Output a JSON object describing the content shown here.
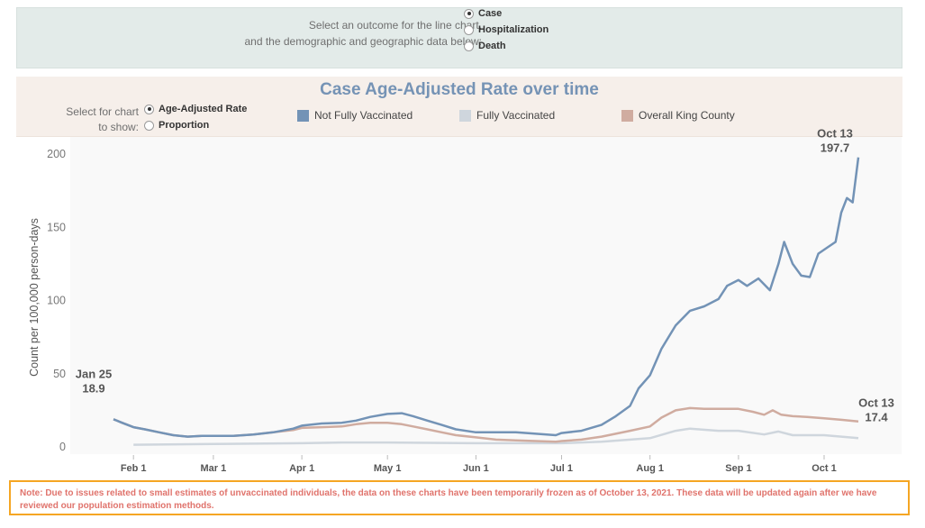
{
  "outcome_selector": {
    "prompt_line1": "Select an outcome for the line chart,",
    "prompt_line2": "and the demographic and geographic data below:",
    "options": [
      {
        "label": "Case",
        "selected": true
      },
      {
        "label": "Hospitalization",
        "selected": false
      },
      {
        "label": "Death",
        "selected": false
      }
    ]
  },
  "chart_header": {
    "title": "Case Age-Adjusted Rate over time",
    "select_label_line1": "Select for chart",
    "select_label_line2": "to show:",
    "show_options": [
      {
        "label": "Age-Adjusted Rate",
        "selected": true
      },
      {
        "label": "Proportion",
        "selected": false
      }
    ]
  },
  "colors": {
    "not_fully_vaccinated": "#7393b6",
    "fully_vaccinated": "#cfd6dd",
    "overall_king_county": "#d0aca0"
  },
  "note": "Note: Due to issues related to small estimates of unvaccinated individuals, the data on these charts have been temporarily frozen as of October 13, 2021. These data will be updated again after we have reviewed our population estimation methods.",
  "chart_data": {
    "type": "line",
    "title": "Case Age-Adjusted Rate over time",
    "ylabel": "Count per 100,000 person-days",
    "xlabel": "",
    "ylim": [
      0,
      200
    ],
    "yticks": [
      0,
      50,
      100,
      150,
      200
    ],
    "x_range": [
      "2021-01-25",
      "2021-10-13"
    ],
    "x_ticks": [
      {
        "date": "2021-02-01",
        "label": "Feb 1"
      },
      {
        "date": "2021-03-01",
        "label": "Mar 1"
      },
      {
        "date": "2021-04-01",
        "label": "Apr 1"
      },
      {
        "date": "2021-05-01",
        "label": "May 1"
      },
      {
        "date": "2021-06-01",
        "label": "Jun 1"
      },
      {
        "date": "2021-07-01",
        "label": "Jul 1"
      },
      {
        "date": "2021-08-01",
        "label": "Aug 1"
      },
      {
        "date": "2021-09-01",
        "label": "Sep 1"
      },
      {
        "date": "2021-10-01",
        "label": "Oct 1"
      }
    ],
    "legend": [
      "Not Fully Vaccinated",
      "Fully Vaccinated",
      "Overall King County"
    ],
    "legend_position": "top",
    "grid": false,
    "annotations": [
      {
        "date_label": "Jan 25",
        "value_label": "18.9",
        "series": "Overall King County",
        "date": "2021-01-25"
      },
      {
        "date_label": "Oct 13",
        "value_label": "197.7",
        "series": "Not Fully Vaccinated",
        "date": "2021-10-13"
      },
      {
        "date_label": "Oct 13",
        "value_label": "17.4",
        "series": "Overall King County",
        "date": "2021-10-13"
      }
    ],
    "series": [
      {
        "name": "Not Fully Vaccinated",
        "color": "#7393b6",
        "points": [
          [
            "2021-01-25",
            18.9
          ],
          [
            "2021-01-28",
            16.5
          ],
          [
            "2021-02-01",
            13.5
          ],
          [
            "2021-02-05",
            12
          ],
          [
            "2021-02-10",
            10
          ],
          [
            "2021-02-15",
            8
          ],
          [
            "2021-02-20",
            7
          ],
          [
            "2021-02-25",
            7.5
          ],
          [
            "2021-03-01",
            7.5
          ],
          [
            "2021-03-08",
            7.5
          ],
          [
            "2021-03-15",
            8.5
          ],
          [
            "2021-03-22",
            10
          ],
          [
            "2021-03-29",
            12.5
          ],
          [
            "2021-04-01",
            14.5
          ],
          [
            "2021-04-08",
            16
          ],
          [
            "2021-04-15",
            16.5
          ],
          [
            "2021-04-20",
            18
          ],
          [
            "2021-04-25",
            20.5
          ],
          [
            "2021-05-01",
            22.5
          ],
          [
            "2021-05-06",
            23
          ],
          [
            "2021-05-10",
            21
          ],
          [
            "2021-05-15",
            18
          ],
          [
            "2021-05-20",
            15
          ],
          [
            "2021-05-25",
            12
          ],
          [
            "2021-06-01",
            10
          ],
          [
            "2021-06-08",
            10
          ],
          [
            "2021-06-15",
            10
          ],
          [
            "2021-06-22",
            9
          ],
          [
            "2021-06-29",
            8
          ],
          [
            "2021-07-01",
            9.5
          ],
          [
            "2021-07-08",
            11
          ],
          [
            "2021-07-15",
            15
          ],
          [
            "2021-07-20",
            21
          ],
          [
            "2021-07-25",
            28
          ],
          [
            "2021-07-28",
            40
          ],
          [
            "2021-08-01",
            49
          ],
          [
            "2021-08-05",
            67
          ],
          [
            "2021-08-10",
            83
          ],
          [
            "2021-08-15",
            93
          ],
          [
            "2021-08-20",
            96
          ],
          [
            "2021-08-25",
            101
          ],
          [
            "2021-08-28",
            110
          ],
          [
            "2021-09-01",
            114
          ],
          [
            "2021-09-04",
            110
          ],
          [
            "2021-09-08",
            115
          ],
          [
            "2021-09-12",
            107
          ],
          [
            "2021-09-15",
            125
          ],
          [
            "2021-09-17",
            140
          ],
          [
            "2021-09-20",
            125
          ],
          [
            "2021-09-23",
            117
          ],
          [
            "2021-09-26",
            116
          ],
          [
            "2021-09-29",
            132
          ],
          [
            "2021-10-02",
            136
          ],
          [
            "2021-10-05",
            140
          ],
          [
            "2021-10-07",
            160
          ],
          [
            "2021-10-09",
            170
          ],
          [
            "2021-10-11",
            167
          ],
          [
            "2021-10-13",
            197.7
          ]
        ]
      },
      {
        "name": "Fully Vaccinated",
        "color": "#cfd6dd",
        "points": [
          [
            "2021-02-01",
            1.5
          ],
          [
            "2021-03-01",
            2
          ],
          [
            "2021-04-01",
            2.5
          ],
          [
            "2021-04-15",
            3
          ],
          [
            "2021-05-01",
            3
          ],
          [
            "2021-06-01",
            2.5
          ],
          [
            "2021-07-01",
            2.5
          ],
          [
            "2021-07-15",
            3.5
          ],
          [
            "2021-08-01",
            6
          ],
          [
            "2021-08-10",
            11
          ],
          [
            "2021-08-15",
            12.5
          ],
          [
            "2021-08-25",
            11
          ],
          [
            "2021-09-01",
            11
          ],
          [
            "2021-09-10",
            8.5
          ],
          [
            "2021-09-15",
            10.5
          ],
          [
            "2021-09-20",
            8
          ],
          [
            "2021-10-01",
            8
          ],
          [
            "2021-10-13",
            6
          ]
        ]
      },
      {
        "name": "Overall King County",
        "color": "#d0aca0",
        "points": [
          [
            "2021-01-25",
            18.9
          ],
          [
            "2021-01-28",
            16.5
          ],
          [
            "2021-02-01",
            13.5
          ],
          [
            "2021-02-05",
            12
          ],
          [
            "2021-02-10",
            10
          ],
          [
            "2021-02-15",
            8
          ],
          [
            "2021-02-20",
            7
          ],
          [
            "2021-02-25",
            7.5
          ],
          [
            "2021-03-01",
            7.5
          ],
          [
            "2021-03-08",
            7.5
          ],
          [
            "2021-03-15",
            8.5
          ],
          [
            "2021-03-22",
            10
          ],
          [
            "2021-03-29",
            11.5
          ],
          [
            "2021-04-01",
            13
          ],
          [
            "2021-04-08",
            13.5
          ],
          [
            "2021-04-15",
            14
          ],
          [
            "2021-04-20",
            15.5
          ],
          [
            "2021-04-25",
            16.5
          ],
          [
            "2021-05-01",
            16.5
          ],
          [
            "2021-05-06",
            15.5
          ],
          [
            "2021-05-10",
            14
          ],
          [
            "2021-05-15",
            12
          ],
          [
            "2021-05-20",
            10
          ],
          [
            "2021-05-25",
            8
          ],
          [
            "2021-06-01",
            6.5
          ],
          [
            "2021-06-08",
            5
          ],
          [
            "2021-06-15",
            4.5
          ],
          [
            "2021-06-22",
            4
          ],
          [
            "2021-06-29",
            3.5
          ],
          [
            "2021-07-01",
            4
          ],
          [
            "2021-07-08",
            5
          ],
          [
            "2021-07-15",
            7
          ],
          [
            "2021-07-20",
            9
          ],
          [
            "2021-07-25",
            11
          ],
          [
            "2021-08-01",
            14
          ],
          [
            "2021-08-05",
            20
          ],
          [
            "2021-08-10",
            25
          ],
          [
            "2021-08-15",
            26.5
          ],
          [
            "2021-08-20",
            26
          ],
          [
            "2021-08-25",
            26
          ],
          [
            "2021-09-01",
            26
          ],
          [
            "2021-09-06",
            24
          ],
          [
            "2021-09-10",
            22
          ],
          [
            "2021-09-13",
            25
          ],
          [
            "2021-09-16",
            22
          ],
          [
            "2021-09-20",
            21
          ],
          [
            "2021-09-25",
            20.5
          ],
          [
            "2021-10-01",
            19.5
          ],
          [
            "2021-10-07",
            18.5
          ],
          [
            "2021-10-13",
            17.4
          ]
        ]
      }
    ]
  }
}
